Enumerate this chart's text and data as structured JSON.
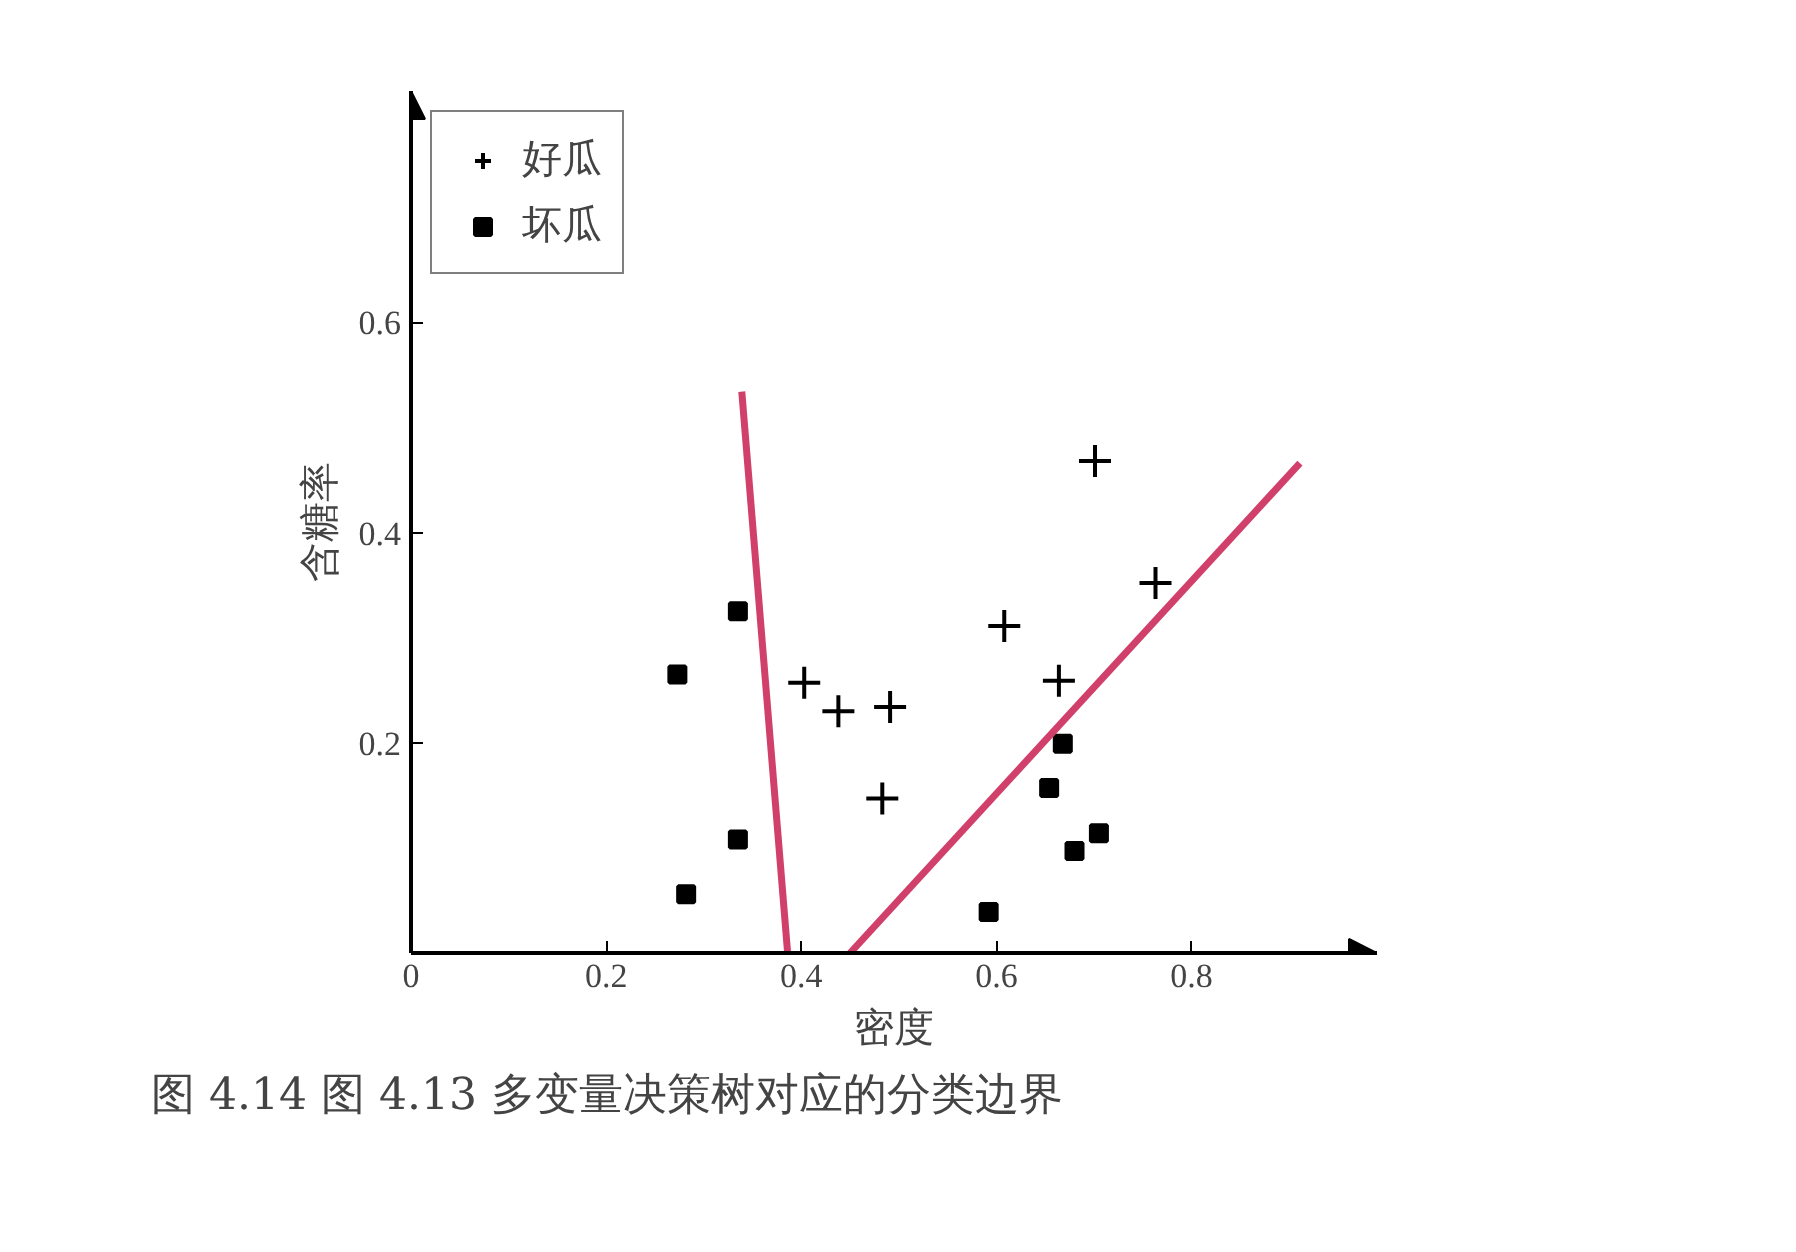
{
  "chart_data": {
    "type": "scatter",
    "xlabel": "密度",
    "ylabel": "含糖率",
    "xlim": [
      0,
      0.99
    ],
    "ylim": [
      0,
      0.82
    ],
    "xticks": [
      {
        "value": 0,
        "label": "0"
      },
      0.2,
      0.4,
      0.6,
      0.8
    ],
    "yticks": [
      0.2,
      0.4,
      0.6
    ],
    "grid": false,
    "legend": "top left",
    "series": [
      {
        "name": "好瓜",
        "color": "#000000",
        "marker": "cross",
        "x": [
          0.403,
          0.438,
          0.491,
          0.483,
          0.608,
          0.664,
          0.701,
          0.763
        ],
        "values": [
          0.257,
          0.23,
          0.234,
          0.147,
          0.311,
          0.259,
          0.468,
          0.352
        ]
      },
      {
        "name": "坏瓜",
        "color": "#000000",
        "marker": "square",
        "x": [
          0.273,
          0.335,
          0.335,
          0.282,
          0.592,
          0.668,
          0.654,
          0.68,
          0.705
        ],
        "values": [
          0.265,
          0.325,
          0.108,
          0.056,
          0.039,
          0.199,
          0.157,
          0.097,
          0.114
        ]
      },
      {
        "type": "line",
        "color": "#d0406a",
        "x": [
          0.339,
          0.386
        ],
        "values": [
          0.534,
          0
        ]
      },
      {
        "type": "line",
        "color": "#d0406a",
        "x": [
          0.45,
          0.911
        ],
        "values": [
          0,
          0.466
        ]
      }
    ],
    "annotations": [
      "图 4.14  图 4.13 多变量决策树对应的分类边界"
    ]
  }
}
